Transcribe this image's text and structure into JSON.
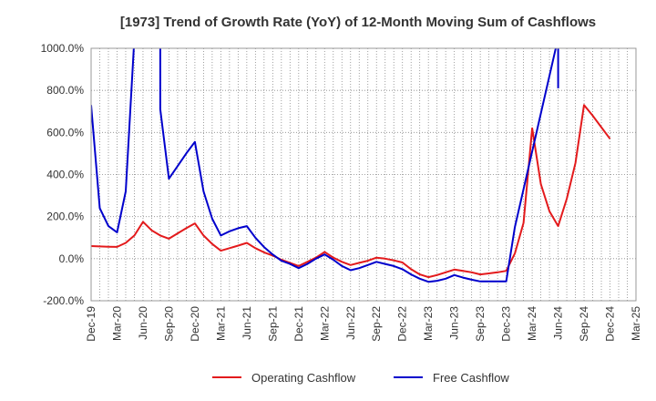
{
  "chart_data": {
    "type": "line",
    "title": "[1973]  Trend of Growth Rate (YoY) of 12-Month Moving Sum of Cashflows",
    "xlabel": "",
    "ylabel": "",
    "x_ticks": [
      "Dec-19",
      "Mar-20",
      "Jun-20",
      "Sep-20",
      "Dec-20",
      "Mar-21",
      "Jun-21",
      "Sep-21",
      "Dec-21",
      "Mar-22",
      "Jun-22",
      "Sep-22",
      "Dec-22",
      "Mar-23",
      "Jun-23",
      "Sep-23",
      "Dec-23",
      "Mar-24",
      "Jun-24",
      "Sep-24",
      "Dec-24",
      "Mar-25"
    ],
    "y_ticks": [
      "-200.0%",
      "0.0%",
      "200.0%",
      "400.0%",
      "600.0%",
      "800.0%",
      "1000.0%"
    ],
    "ylim": [
      -200,
      1000
    ],
    "grid": true,
    "legend_position": "bottom",
    "series": [
      {
        "name": "Operating Cashflow",
        "color": "#e31a1c",
        "values": [
          [
            "Dec-19",
            60
          ],
          [
            "Jan-20",
            58
          ],
          [
            "Feb-20",
            57
          ],
          [
            "Mar-20",
            56
          ],
          [
            "Apr-20",
            75
          ],
          [
            "May-20",
            110
          ],
          [
            "Jun-20",
            175
          ],
          [
            "Jul-20",
            135
          ],
          [
            "Aug-20",
            110
          ],
          [
            "Sep-20",
            95
          ],
          [
            "Oct-20",
            120
          ],
          [
            "Nov-20",
            145
          ],
          [
            "Dec-20",
            168
          ],
          [
            "Jan-21",
            110
          ],
          [
            "Feb-21",
            70
          ],
          [
            "Mar-21",
            38
          ],
          [
            "Apr-21",
            50
          ],
          [
            "May-21",
            62
          ],
          [
            "Jun-21",
            75
          ],
          [
            "Jul-21",
            50
          ],
          [
            "Aug-21",
            30
          ],
          [
            "Sep-21",
            15
          ],
          [
            "Oct-21",
            -5
          ],
          [
            "Nov-21",
            -20
          ],
          [
            "Dec-21",
            -35
          ],
          [
            "Jan-22",
            -15
          ],
          [
            "Feb-22",
            5
          ],
          [
            "Mar-22",
            32
          ],
          [
            "Apr-22",
            5
          ],
          [
            "May-22",
            -15
          ],
          [
            "Jun-22",
            -30
          ],
          [
            "Jul-22",
            -20
          ],
          [
            "Aug-22",
            -10
          ],
          [
            "Sep-22",
            5
          ],
          [
            "Oct-22",
            0
          ],
          [
            "Nov-22",
            -8
          ],
          [
            "Dec-22",
            -18
          ],
          [
            "Jan-23",
            -50
          ],
          [
            "Feb-23",
            -75
          ],
          [
            "Mar-23",
            -88
          ],
          [
            "Apr-23",
            -78
          ],
          [
            "May-23",
            -65
          ],
          [
            "Jun-23",
            -52
          ],
          [
            "Jul-23",
            -58
          ],
          [
            "Aug-23",
            -65
          ],
          [
            "Sep-23",
            -75
          ],
          [
            "Oct-23",
            -70
          ],
          [
            "Nov-23",
            -65
          ],
          [
            "Dec-23",
            -58
          ],
          [
            "Jan-24",
            25
          ],
          [
            "Feb-24",
            170
          ],
          [
            "Mar-24",
            620
          ],
          [
            "Apr-24",
            355
          ],
          [
            "May-24",
            225
          ],
          [
            "Jun-24",
            155
          ],
          [
            "Jul-24",
            285
          ],
          [
            "Aug-24",
            455
          ],
          [
            "Sep-24",
            730
          ],
          [
            "Oct-24",
            680
          ],
          [
            "Nov-24",
            625
          ],
          [
            "Dec-24",
            570
          ]
        ]
      },
      {
        "name": "Free Cashflow",
        "color": "#0000cc",
        "values": [
          [
            "Dec-19",
            730
          ],
          [
            "Jan-20",
            240
          ],
          [
            "Feb-20",
            155
          ],
          [
            "Mar-20",
            125
          ],
          [
            "Apr-20",
            320
          ],
          [
            "May-20",
            1050
          ],
          [
            "Jun-20",
            1050
          ],
          [
            "Jul-20",
            1050
          ],
          [
            "Aug-20",
            1050
          ],
          [
            "Aug-20",
            710
          ],
          [
            "Sep-20",
            380
          ],
          [
            "Oct-20",
            440
          ],
          [
            "Nov-20",
            500
          ],
          [
            "Dec-20",
            555
          ],
          [
            "Jan-21",
            320
          ],
          [
            "Feb-21",
            190
          ],
          [
            "Mar-21",
            110
          ],
          [
            "Apr-21",
            130
          ],
          [
            "May-21",
            145
          ],
          [
            "Jun-21",
            155
          ],
          [
            "Jul-21",
            100
          ],
          [
            "Aug-21",
            55
          ],
          [
            "Sep-21",
            20
          ],
          [
            "Oct-21",
            -10
          ],
          [
            "Nov-21",
            -25
          ],
          [
            "Dec-21",
            -45
          ],
          [
            "Jan-22",
            -25
          ],
          [
            "Feb-22",
            0
          ],
          [
            "Mar-22",
            20
          ],
          [
            "Apr-22",
            -5
          ],
          [
            "May-22",
            -35
          ],
          [
            "Jun-22",
            -55
          ],
          [
            "Jul-22",
            -45
          ],
          [
            "Aug-22",
            -30
          ],
          [
            "Sep-22",
            -15
          ],
          [
            "Oct-22",
            -25
          ],
          [
            "Nov-22",
            -35
          ],
          [
            "Dec-22",
            -50
          ],
          [
            "Jan-23",
            -75
          ],
          [
            "Feb-23",
            -95
          ],
          [
            "Mar-23",
            -110
          ],
          [
            "Apr-23",
            -105
          ],
          [
            "May-23",
            -95
          ],
          [
            "Jun-23",
            -78
          ],
          [
            "Jul-23",
            -90
          ],
          [
            "Aug-23",
            -100
          ],
          [
            "Sep-23",
            -108
          ],
          [
            "Oct-23",
            -108
          ],
          [
            "Nov-23",
            -108
          ],
          [
            "Dec-23",
            -108
          ],
          [
            "Jan-24",
            150
          ],
          [
            "Jun-24",
            1050
          ],
          [
            "Jun-24",
            810
          ]
        ]
      }
    ]
  }
}
